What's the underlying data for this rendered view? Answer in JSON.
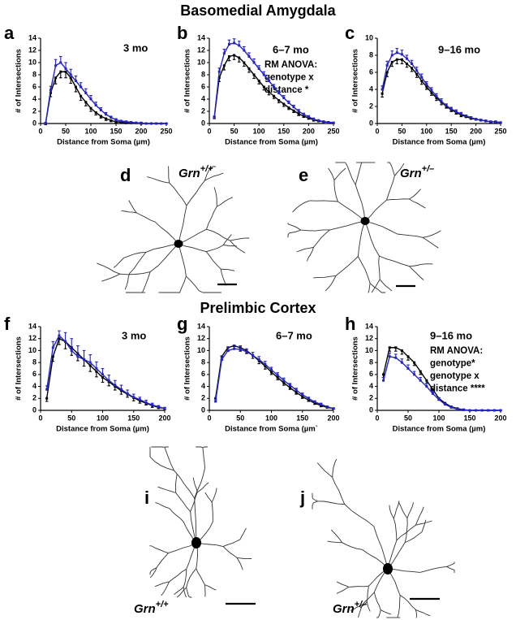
{
  "sections": [
    {
      "title": "Basomedial Amygdala"
    },
    {
      "title": "Prelimbic Cortex"
    }
  ],
  "chart_data": [
    {
      "type": "line",
      "panel": "a",
      "title": "3 mo",
      "xlabel": "Distance from Soma (µm)",
      "ylabel": "# of Intersections",
      "x": [
        10,
        20,
        30,
        40,
        50,
        60,
        70,
        80,
        90,
        100,
        110,
        120,
        130,
        140,
        150,
        160,
        170,
        180,
        190,
        200,
        210,
        220,
        230,
        240,
        250
      ],
      "xlim": [
        0,
        250
      ],
      "xticks": [
        0,
        50,
        100,
        150,
        200,
        250
      ],
      "ylim": [
        0,
        14
      ],
      "yticks": [
        0,
        2,
        4,
        6,
        8,
        10,
        12,
        14
      ],
      "series": [
        {
          "color": "#000000",
          "values": [
            0,
            5,
            7.5,
            8.5,
            8.5,
            7.5,
            6,
            4.5,
            3.5,
            2.5,
            1.8,
            1.2,
            0.8,
            0.5,
            0.3,
            0.2,
            0.1,
            0.1,
            0.1,
            0,
            0,
            0,
            0,
            0,
            0
          ],
          "errors": [
            0.2,
            0.6,
            1,
            1,
            1,
            0.9,
            0.8,
            0.7,
            0.6,
            0.5,
            0.4,
            0.3,
            0.3,
            0.2,
            0.2,
            0.1,
            0.1,
            0.1,
            0.1,
            0,
            0,
            0,
            0,
            0,
            0
          ]
        },
        {
          "color": "#2323c8",
          "values": [
            0,
            5.5,
            9.5,
            10,
            9,
            8,
            7,
            6,
            5,
            4,
            3,
            2.2,
            1.5,
            1,
            0.6,
            0.4,
            0.3,
            0.2,
            0.1,
            0.1,
            0,
            0,
            0,
            0,
            0
          ],
          "errors": [
            0.2,
            0.6,
            1,
            1,
            1,
            0.9,
            0.8,
            0.7,
            0.7,
            0.6,
            0.5,
            0.4,
            0.3,
            0.2,
            0.2,
            0.1,
            0.1,
            0.1,
            0.1,
            0.1,
            0,
            0,
            0,
            0,
            0
          ]
        }
      ]
    },
    {
      "type": "line",
      "panel": "b",
      "title": "6–7 mo",
      "annotation": [
        "RM ANOVA:",
        "genotype x",
        "distance *"
      ],
      "xlabel": "Distance from Soma (µm)",
      "ylabel": "# of Intersections",
      "x": [
        10,
        20,
        30,
        40,
        50,
        60,
        70,
        80,
        90,
        100,
        110,
        120,
        130,
        140,
        150,
        160,
        170,
        180,
        190,
        200,
        210,
        220,
        230,
        240,
        250
      ],
      "xlim": [
        0,
        250
      ],
      "xticks": [
        0,
        50,
        100,
        150,
        200,
        250
      ],
      "ylim": [
        0,
        14
      ],
      "yticks": [
        0,
        2,
        4,
        6,
        8,
        10,
        12,
        14
      ],
      "series": [
        {
          "color": "#000000",
          "values": [
            1,
            7.5,
            9.5,
            11,
            11.2,
            10.8,
            10,
            9,
            8,
            7,
            6,
            5.2,
            4.5,
            3.8,
            3.2,
            2.6,
            2.1,
            1.6,
            1.2,
            0.9,
            0.6,
            0.4,
            0.3,
            0.2,
            0.1
          ],
          "errors": [
            0.2,
            0.6,
            0.7,
            0.7,
            0.7,
            0.7,
            0.6,
            0.6,
            0.6,
            0.5,
            0.5,
            0.5,
            0.4,
            0.4,
            0.4,
            0.3,
            0.3,
            0.3,
            0.2,
            0.2,
            0.2,
            0.1,
            0.1,
            0.1,
            0.1
          ]
        },
        {
          "color": "#2323c8",
          "values": [
            1,
            8.5,
            11.5,
            13,
            13.2,
            12.8,
            12,
            11,
            10,
            9,
            8,
            7,
            6,
            5,
            4.2,
            3.4,
            2.7,
            2,
            1.5,
            1.1,
            0.7,
            0.5,
            0.3,
            0.2,
            0.1
          ],
          "errors": [
            0.2,
            0.6,
            0.7,
            0.7,
            0.7,
            0.7,
            0.6,
            0.6,
            0.6,
            0.5,
            0.5,
            0.5,
            0.4,
            0.4,
            0.4,
            0.3,
            0.3,
            0.3,
            0.2,
            0.2,
            0.2,
            0.1,
            0.1,
            0.1,
            0.1
          ]
        }
      ]
    },
    {
      "type": "line",
      "panel": "c",
      "title": "9–16 mo",
      "xlabel": "Distance from Soma (µm)",
      "ylabel": "# of Intersections",
      "x": [
        10,
        20,
        30,
        40,
        50,
        60,
        70,
        80,
        90,
        100,
        110,
        120,
        130,
        140,
        150,
        160,
        170,
        180,
        190,
        200,
        210,
        220,
        230,
        240,
        250
      ],
      "xlim": [
        0,
        250
      ],
      "xticks": [
        0,
        50,
        100,
        150,
        200,
        250
      ],
      "ylim": [
        0,
        10
      ],
      "yticks": [
        0,
        2,
        4,
        6,
        8,
        10
      ],
      "series": [
        {
          "color": "#000000",
          "values": [
            3.5,
            6,
            7.2,
            7.5,
            7.5,
            7,
            6.5,
            5.8,
            5,
            4.3,
            3.6,
            3,
            2.5,
            2,
            1.6,
            1.3,
            1,
            0.8,
            0.6,
            0.5,
            0.4,
            0.3,
            0.2,
            0.2,
            0.1
          ],
          "errors": [
            0.4,
            0.5,
            0.5,
            0.5,
            0.5,
            0.4,
            0.4,
            0.4,
            0.4,
            0.3,
            0.3,
            0.3,
            0.3,
            0.2,
            0.2,
            0.2,
            0.2,
            0.1,
            0.1,
            0.1,
            0.1,
            0.1,
            0.1,
            0.1,
            0.1
          ]
        },
        {
          "color": "#2323c8",
          "values": [
            4,
            6.8,
            8,
            8.3,
            8.1,
            7.6,
            7,
            6.2,
            5.4,
            4.6,
            3.9,
            3.2,
            2.6,
            2.1,
            1.7,
            1.4,
            1.1,
            0.9,
            0.7,
            0.5,
            0.4,
            0.3,
            0.2,
            0.2,
            0.1
          ],
          "errors": [
            0.4,
            0.5,
            0.5,
            0.5,
            0.5,
            0.4,
            0.4,
            0.4,
            0.4,
            0.3,
            0.3,
            0.3,
            0.3,
            0.2,
            0.2,
            0.2,
            0.2,
            0.1,
            0.1,
            0.1,
            0.1,
            0.1,
            0.1,
            0.1,
            0.1
          ]
        }
      ]
    },
    {
      "type": "line",
      "panel": "f",
      "title": "3 mo",
      "xlabel": "Distance from Soma (µm)",
      "ylabel": "# of Intersections",
      "x": [
        10,
        20,
        30,
        40,
        50,
        60,
        70,
        80,
        90,
        100,
        110,
        120,
        130,
        140,
        150,
        160,
        170,
        180,
        190,
        200
      ],
      "xlim": [
        0,
        200
      ],
      "xticks": [
        0,
        50,
        100,
        150,
        200
      ],
      "ylim": [
        0,
        14
      ],
      "yticks": [
        0,
        2,
        4,
        6,
        8,
        10,
        12,
        14
      ],
      "series": [
        {
          "color": "#000000",
          "values": [
            2,
            9,
            12,
            11.5,
            10.5,
            9.5,
            8.5,
            7.5,
            6.5,
            5.5,
            4.8,
            4,
            3.3,
            2.7,
            2.1,
            1.6,
            1.2,
            0.8,
            0.5,
            0.3
          ],
          "errors": [
            0.5,
            0.8,
            1,
            1.2,
            1.3,
            1.2,
            1.1,
            1,
            0.9,
            0.8,
            0.7,
            0.6,
            0.6,
            0.5,
            0.5,
            0.4,
            0.3,
            0.3,
            0.2,
            0.2
          ]
        },
        {
          "color": "#2323c8",
          "values": [
            3.5,
            10.5,
            12.5,
            11.5,
            10,
            9,
            8.5,
            8,
            7,
            6,
            5,
            4.2,
            3.5,
            2.8,
            2.2,
            1.8,
            1.3,
            0.9,
            0.6,
            0.3
          ],
          "errors": [
            0.6,
            1,
            0.8,
            1.5,
            2,
            1.8,
            1.5,
            1.3,
            1.1,
            1,
            0.9,
            0.8,
            0.7,
            0.6,
            0.5,
            0.4,
            0.4,
            0.3,
            0.2,
            0.2
          ]
        }
      ]
    },
    {
      "type": "line",
      "panel": "g",
      "title": "6–7 mo",
      "xlabel": "Distance from Soma (µm`",
      "ylabel": "# of Intersections",
      "x": [
        10,
        20,
        30,
        40,
        50,
        60,
        70,
        80,
        90,
        100,
        110,
        120,
        130,
        140,
        150,
        160,
        170,
        180,
        190,
        200
      ],
      "xlim": [
        0,
        200
      ],
      "xticks": [
        0,
        50,
        100,
        150,
        200
      ],
      "ylim": [
        0,
        14
      ],
      "yticks": [
        0,
        2,
        4,
        6,
        8,
        10,
        12,
        14
      ],
      "series": [
        {
          "color": "#000000",
          "values": [
            2,
            9,
            10.5,
            10.8,
            10.5,
            10,
            9.2,
            8.3,
            7.4,
            6.4,
            5.5,
            4.6,
            3.8,
            3,
            2.3,
            1.7,
            1.2,
            0.8,
            0.5,
            0.3
          ],
          "errors": [
            0.4,
            0.6,
            0.6,
            0.6,
            0.6,
            0.5,
            0.5,
            0.5,
            0.5,
            0.4,
            0.4,
            0.4,
            0.3,
            0.3,
            0.3,
            0.2,
            0.2,
            0.2,
            0.1,
            0.1
          ]
        },
        {
          "color": "#2323c8",
          "values": [
            1.5,
            8.5,
            10,
            10.3,
            10.2,
            9.8,
            9.2,
            8.5,
            7.7,
            6.8,
            5.9,
            5,
            4.2,
            3.4,
            2.6,
            2,
            1.4,
            1,
            0.6,
            0.3
          ],
          "errors": [
            0.4,
            0.6,
            0.6,
            0.6,
            0.6,
            0.5,
            0.5,
            0.5,
            0.5,
            0.4,
            0.4,
            0.4,
            0.3,
            0.3,
            0.3,
            0.2,
            0.2,
            0.2,
            0.1,
            0.1
          ]
        }
      ]
    },
    {
      "type": "line",
      "panel": "h",
      "title": "9–16 mo",
      "annotation": [
        "RM ANOVA:",
        "genotype*",
        "genotype x",
        "distance ****"
      ],
      "xlabel": "Distance from Soma (µm)",
      "ylabel": "# of Intersections",
      "x": [
        10,
        20,
        30,
        40,
        50,
        60,
        70,
        80,
        90,
        100,
        110,
        120,
        130,
        140,
        150,
        160,
        170,
        180,
        190,
        200
      ],
      "xlim": [
        0,
        200
      ],
      "xticks": [
        0,
        50,
        100,
        150,
        200
      ],
      "ylim": [
        0,
        14
      ],
      "yticks": [
        0,
        2,
        4,
        6,
        8,
        10,
        12,
        14
      ],
      "series": [
        {
          "color": "#000000",
          "values": [
            6,
            10.5,
            10.5,
            10,
            9,
            8,
            6.5,
            5,
            3.5,
            2,
            1.2,
            0.6,
            0.3,
            0.1,
            0,
            0,
            0,
            0,
            0,
            0
          ],
          "errors": [
            0.5,
            0.6,
            0.6,
            0.6,
            0.6,
            0.5,
            0.5,
            0.5,
            0.4,
            0.3,
            0.2,
            0.2,
            0.1,
            0.1,
            0,
            0,
            0,
            0,
            0,
            0
          ]
        },
        {
          "color": "#2323c8",
          "values": [
            5,
            9,
            8.8,
            8,
            7,
            6,
            5,
            4,
            2.8,
            1.8,
            1,
            0.5,
            0.2,
            0.1,
            0,
            0,
            0,
            0,
            0,
            0
          ],
          "errors": [
            0.5,
            0.6,
            0.6,
            0.6,
            0.6,
            0.5,
            0.5,
            0.5,
            0.4,
            0.3,
            0.2,
            0.2,
            0.1,
            0.1,
            0,
            0,
            0,
            0,
            0,
            0
          ]
        }
      ]
    }
  ],
  "tracings": [
    {
      "panel": "d",
      "genotype": "Grn",
      "sup": "+/+"
    },
    {
      "panel": "e",
      "genotype": "Grn",
      "sup": "+/–"
    },
    {
      "panel": "i",
      "genotype": "Grn",
      "sup": "+/+"
    },
    {
      "panel": "j",
      "genotype": "Grn",
      "sup": "+/–"
    }
  ]
}
